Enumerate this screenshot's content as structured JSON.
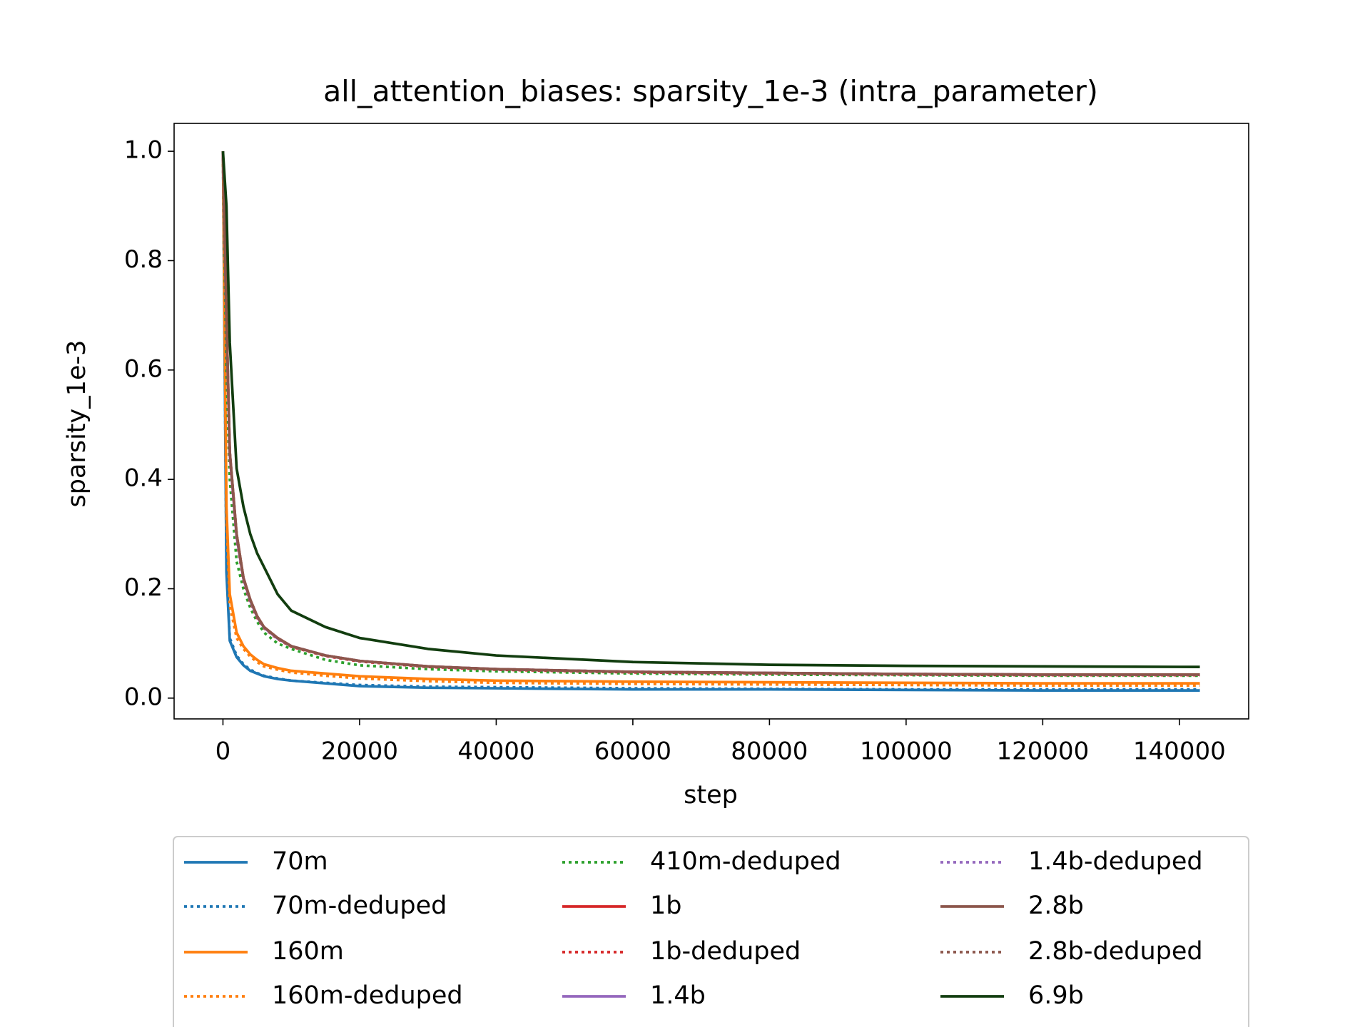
{
  "chart_data": {
    "type": "line",
    "title": "all_attention_biases: sparsity_1e-3 (intra_parameter)",
    "x_label": "step",
    "y_label": "sparsity_1e-3",
    "x": [
      0,
      512,
      1000,
      2000,
      3000,
      4000,
      5000,
      6000,
      8000,
      10000,
      15000,
      20000,
      30000,
      40000,
      60000,
      80000,
      100000,
      120000,
      143000
    ],
    "xlim": [
      -7150,
      150150
    ],
    "ylim": [
      -0.038,
      1.051
    ],
    "xticks": [
      0,
      20000,
      40000,
      60000,
      80000,
      100000,
      120000,
      140000
    ],
    "yticks": [
      {
        "value": 0,
        "label": "0.0"
      },
      {
        "value": 0.2,
        "label": "0.2"
      },
      {
        "value": 0.4,
        "label": "0.4"
      },
      {
        "value": 0.6,
        "label": "0.6"
      },
      {
        "value": 0.8,
        "label": "0.8"
      },
      {
        "value": 1,
        "label": "1.0"
      }
    ],
    "series": [
      {
        "name": "70m",
        "color": "#1f77b4",
        "linestyle": "solid",
        "values": [
          1.0,
          0.23,
          0.105,
          0.075,
          0.06,
          0.05,
          0.045,
          0.04,
          0.035,
          0.032,
          0.027,
          0.022,
          0.019,
          0.018,
          0.016,
          0.016,
          0.015,
          0.014,
          0.014
        ]
      },
      {
        "name": "70m-deduped",
        "color": "#1f77b4",
        "linestyle": "dotted",
        "values": [
          1.0,
          0.24,
          0.11,
          0.078,
          0.062,
          0.052,
          0.046,
          0.041,
          0.036,
          0.032,
          0.028,
          0.024,
          0.021,
          0.02,
          0.018,
          0.017,
          0.016,
          0.016,
          0.016
        ]
      },
      {
        "name": "160m",
        "color": "#ff7f0e",
        "linestyle": "solid",
        "values": [
          1.0,
          0.35,
          0.19,
          0.12,
          0.095,
          0.08,
          0.07,
          0.062,
          0.055,
          0.05,
          0.045,
          0.04,
          0.035,
          0.032,
          0.03,
          0.029,
          0.028,
          0.027,
          0.027
        ]
      },
      {
        "name": "160m-deduped",
        "color": "#ff7f0e",
        "linestyle": "dotted",
        "values": [
          1.0,
          0.33,
          0.17,
          0.11,
          0.09,
          0.076,
          0.066,
          0.058,
          0.052,
          0.047,
          0.041,
          0.036,
          0.031,
          0.028,
          0.026,
          0.025,
          0.024,
          0.023,
          0.023
        ]
      },
      {
        "name": "410m-deduped",
        "color": "#2ca02c",
        "linestyle": "dotted",
        "values": [
          1.0,
          0.6,
          0.4,
          0.25,
          0.2,
          0.165,
          0.14,
          0.12,
          0.1,
          0.09,
          0.07,
          0.06,
          0.053,
          0.049,
          0.045,
          0.043,
          0.042,
          0.041,
          0.041
        ]
      },
      {
        "name": "1b",
        "color": "#d62728",
        "linestyle": "solid",
        "values": [
          1.0,
          0.7,
          0.45,
          0.3,
          0.22,
          0.18,
          0.15,
          0.13,
          0.11,
          0.095,
          0.078,
          0.068,
          0.058,
          0.053,
          0.048,
          0.046,
          0.044,
          0.043,
          0.043
        ]
      },
      {
        "name": "1b-deduped",
        "color": "#d62728",
        "linestyle": "dotted",
        "values": [
          1.0,
          0.68,
          0.44,
          0.29,
          0.215,
          0.175,
          0.147,
          0.128,
          0.108,
          0.094,
          0.077,
          0.067,
          0.057,
          0.052,
          0.047,
          0.045,
          0.043,
          0.042,
          0.042
        ]
      },
      {
        "name": "1.4b",
        "color": "#9467bd",
        "linestyle": "solid",
        "values": [
          1.0,
          0.69,
          0.445,
          0.295,
          0.218,
          0.178,
          0.149,
          0.129,
          0.109,
          0.095,
          0.078,
          0.068,
          0.058,
          0.053,
          0.048,
          0.046,
          0.044,
          0.043,
          0.043
        ]
      },
      {
        "name": "1.4b-deduped",
        "color": "#9467bd",
        "linestyle": "dotted",
        "values": [
          1.0,
          0.69,
          0.445,
          0.295,
          0.218,
          0.178,
          0.149,
          0.129,
          0.109,
          0.095,
          0.078,
          0.068,
          0.058,
          0.053,
          0.048,
          0.046,
          0.044,
          0.043,
          0.043
        ]
      },
      {
        "name": "2.8b",
        "color": "#8c564b",
        "linestyle": "solid",
        "values": [
          1.0,
          0.7,
          0.45,
          0.3,
          0.22,
          0.18,
          0.15,
          0.13,
          0.11,
          0.095,
          0.078,
          0.068,
          0.058,
          0.053,
          0.048,
          0.046,
          0.044,
          0.043,
          0.043
        ]
      },
      {
        "name": "2.8b-deduped",
        "color": "#8c564b",
        "linestyle": "dotted",
        "values": [
          1.0,
          0.7,
          0.45,
          0.3,
          0.22,
          0.18,
          0.15,
          0.13,
          0.11,
          0.095,
          0.078,
          0.068,
          0.058,
          0.053,
          0.048,
          0.046,
          0.044,
          0.043,
          0.043
        ]
      },
      {
        "name": "6.9b",
        "color": "#123d0f",
        "linestyle": "solid",
        "values": [
          1.0,
          0.9,
          0.65,
          0.42,
          0.35,
          0.3,
          0.265,
          0.24,
          0.19,
          0.16,
          0.13,
          0.11,
          0.09,
          0.078,
          0.066,
          0.061,
          0.059,
          0.058,
          0.057
        ]
      }
    ]
  }
}
